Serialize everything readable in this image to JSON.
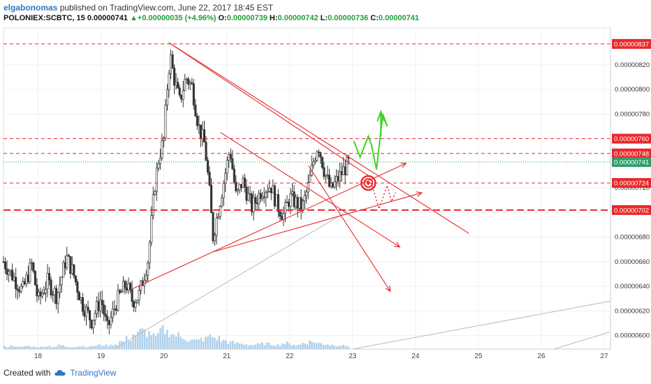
{
  "header": {
    "author": "elgabonomas",
    "published": "published on TradingView.com, June 22, 2017 18:45 EST",
    "symbol": "POLONIEX:SCBTC, 15",
    "last": "0.00000741",
    "change": "+0.00000035 (+4.96%)",
    "open_label": "O:",
    "open": "0.00000739",
    "high_label": "H:",
    "high": "0.00000742",
    "low_label": "L:",
    "low": "0.00000736",
    "close_label": "C:",
    "close": "0.00000741"
  },
  "footer": {
    "created_with": "Created with",
    "brand": "TradingView",
    "brand_icon": "tradingview-cloud-icon"
  },
  "colors": {
    "candle_up": "#333333",
    "annotation_red": "#e8292c",
    "projection_green": "#3fd21f",
    "volume": "#9fc7e8",
    "current_price": "#2f9e6b"
  },
  "chart_data": {
    "type": "candlestick",
    "title": "",
    "xlabel": "",
    "ylabel": "",
    "x_ticks": [
      "18",
      "19",
      "20",
      "21",
      "22",
      "23",
      "24",
      "25",
      "26",
      "27"
    ],
    "y_ticks": [
      "0.00000820",
      "0.00000800",
      "0.00000780",
      "0.00000720",
      "0.00000700",
      "0.00000680",
      "0.00000660",
      "0.00000640",
      "0.00000620",
      "0.00000600"
    ],
    "ylim": [
      5.89e-06,
      8.5e-06
    ],
    "xlim": [
      17.45,
      27.1
    ],
    "grid": true,
    "price_path": [
      [
        17.45,
        6.6e-06
      ],
      [
        17.6,
        6.48e-06
      ],
      [
        17.75,
        6.36e-06
      ],
      [
        17.9,
        6.58e-06
      ],
      [
        18.0,
        6.28e-06
      ],
      [
        18.15,
        6.44e-06
      ],
      [
        18.3,
        6.32e-06
      ],
      [
        18.45,
        6.64e-06
      ],
      [
        18.55,
        6.52e-06
      ],
      [
        18.7,
        6.26e-06
      ],
      [
        18.85,
        6.12e-06
      ],
      [
        19.0,
        6.3e-06
      ],
      [
        19.1,
        6.05e-06
      ],
      [
        19.25,
        6.28e-06
      ],
      [
        19.4,
        6.42e-06
      ],
      [
        19.5,
        6.28e-06
      ],
      [
        19.6,
        6.32e-06
      ],
      [
        19.75,
        6.62e-06
      ],
      [
        19.85,
        7.2e-06
      ],
      [
        19.92,
        7.45e-06
      ],
      [
        20.0,
        7.6e-06
      ],
      [
        20.05,
        8e-06
      ],
      [
        20.1,
        8.28e-06
      ],
      [
        20.15,
        8.12e-06
      ],
      [
        20.25,
        7.9e-06
      ],
      [
        20.35,
        8.1e-06
      ],
      [
        20.45,
        8.02e-06
      ],
      [
        20.55,
        7.7e-06
      ],
      [
        20.65,
        7.55e-06
      ],
      [
        20.72,
        7.2e-06
      ],
      [
        20.78,
        6.8e-06
      ],
      [
        20.85,
        6.98e-06
      ],
      [
        20.95,
        7.25e-06
      ],
      [
        21.05,
        7.52e-06
      ],
      [
        21.15,
        7.12e-06
      ],
      [
        21.25,
        7.26e-06
      ],
      [
        21.4,
        7.04e-06
      ],
      [
        21.55,
        7.18e-06
      ],
      [
        21.7,
        7.22e-06
      ],
      [
        21.8,
        7.06e-06
      ],
      [
        21.9,
        6.98e-06
      ],
      [
        22.0,
        7.12e-06
      ],
      [
        22.1,
        7.08e-06
      ],
      [
        22.2,
        7.04e-06
      ],
      [
        22.3,
        7.22e-06
      ],
      [
        22.38,
        7.42e-06
      ],
      [
        22.45,
        7.56e-06
      ],
      [
        22.55,
        7.34e-06
      ],
      [
        22.65,
        7.18e-06
      ],
      [
        22.75,
        7.26e-06
      ],
      [
        22.85,
        7.34e-06
      ],
      [
        22.95,
        7.41e-06
      ]
    ],
    "volume_levels": [
      0.06,
      0.08,
      0.05,
      0.07,
      0.06,
      0.05,
      0.07,
      0.06,
      0.09,
      0.05,
      0.06,
      0.07,
      0.06,
      0.08,
      0.1,
      0.09,
      0.12,
      0.18,
      0.25,
      0.35,
      0.42,
      0.38,
      0.3,
      0.45,
      0.4,
      0.33,
      0.28,
      0.22,
      0.2,
      0.24,
      0.3,
      0.26,
      0.2,
      0.16,
      0.14,
      0.12,
      0.1,
      0.11,
      0.13,
      0.12,
      0.1,
      0.14,
      0.12,
      0.1,
      0.15,
      0.18,
      0.14,
      0.12,
      0.1,
      0.09,
      0.08
    ],
    "horizontal_levels": [
      {
        "price": 8.37e-06,
        "label": "0.00000837"
      },
      {
        "price": 7.6e-06,
        "label": "0.00000760"
      },
      {
        "price": 7.48e-06,
        "label": "0.00000748"
      },
      {
        "price": 7.24e-06,
        "label": "0.00000724"
      },
      {
        "price": 7.02e-06,
        "label": "0.00000702"
      }
    ],
    "current_price": {
      "price": 7.41e-06,
      "label": "0.00000741"
    },
    "trendlines": [
      {
        "from": [
          20.08,
          8.38e-06
        ],
        "to": [
          24.85,
          6.83e-06
        ],
        "color": "red"
      },
      {
        "from": [
          20.08,
          8.38e-06
        ],
        "to": [
          23.25,
          7.3e-06
        ],
        "color": "red"
      },
      {
        "from": [
          20.9,
          7.65e-06
        ],
        "to": [
          23.75,
          6.72e-06
        ],
        "color": "red"
      },
      {
        "from": [
          22.3,
          7.38e-06
        ],
        "to": [
          23.6,
          6.36e-06
        ],
        "color": "red"
      },
      {
        "from": [
          19.5,
          6.38e-06
        ],
        "to": [
          23.85,
          7.4e-06
        ],
        "color": "red"
      },
      {
        "from": [
          20.78,
          6.68e-06
        ],
        "to": [
          24.1,
          7.16e-06
        ],
        "color": "red"
      }
    ],
    "green_projection": [
      [
        23.02,
        7.58e-06
      ],
      [
        23.12,
        7.45e-06
      ],
      [
        23.25,
        7.62e-06
      ],
      [
        23.3,
        7.55e-06
      ],
      [
        23.38,
        7.35e-06
      ],
      [
        23.48,
        7.8e-06
      ],
      [
        23.55,
        7.7e-06
      ]
    ],
    "green_arrow_tip": [
      23.45,
      7.82e-06
    ],
    "dotted_projection": [
      [
        23.3,
        7.24e-06
      ],
      [
        23.42,
        7.03e-06
      ],
      [
        23.55,
        7.22e-06
      ],
      [
        23.62,
        7.09e-06
      ],
      [
        23.68,
        7.16e-06
      ]
    ],
    "target_marker": [
      23.25,
      7.24e-06
    ]
  }
}
